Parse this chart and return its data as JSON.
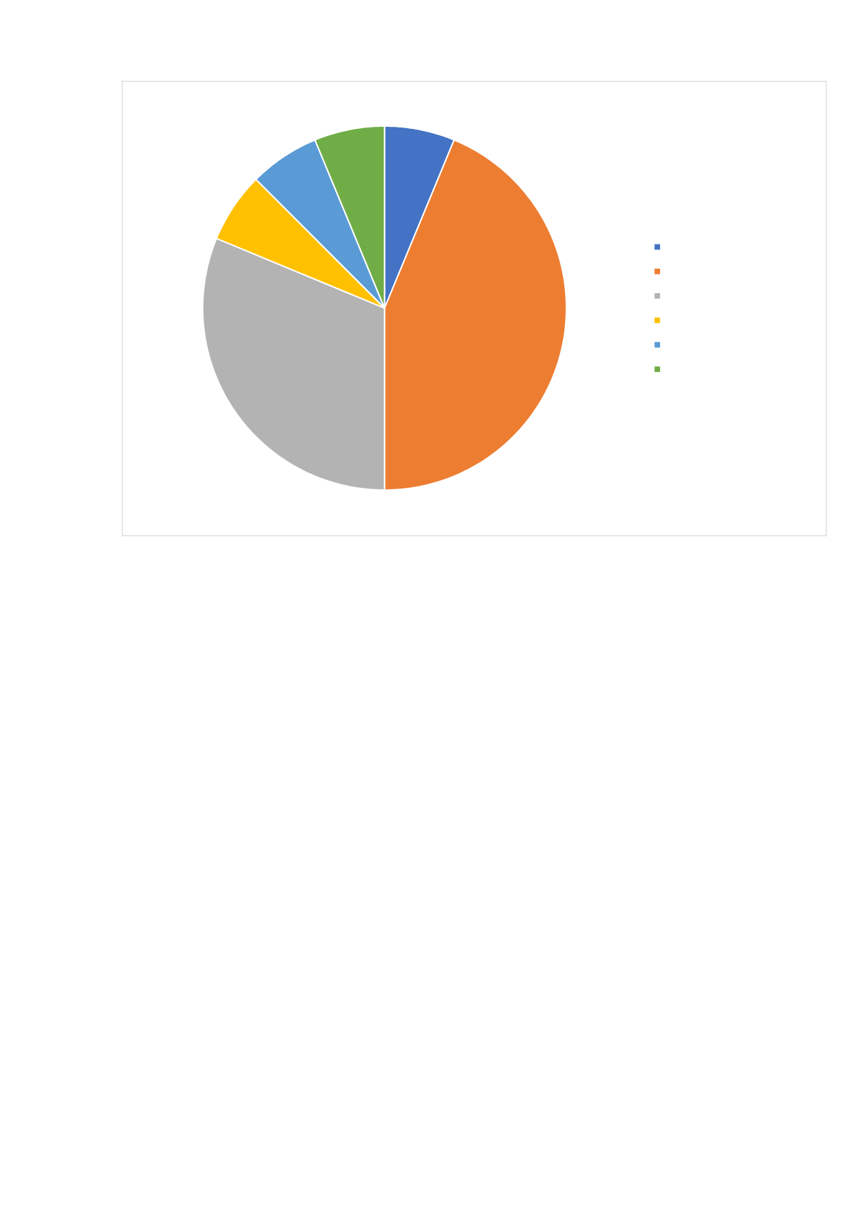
{
  "chart_data": {
    "type": "pie",
    "categories": [
      null,
      null,
      null,
      null,
      null,
      null
    ],
    "values": [
      6.25,
      43.75,
      31.25,
      6.25,
      6.25,
      6.25
    ],
    "colors": [
      "#4472c4",
      "#ed7d31",
      "#b3b3b3",
      "#ffc000",
      "#5b9bd5",
      "#70ad47"
    ]
  }
}
